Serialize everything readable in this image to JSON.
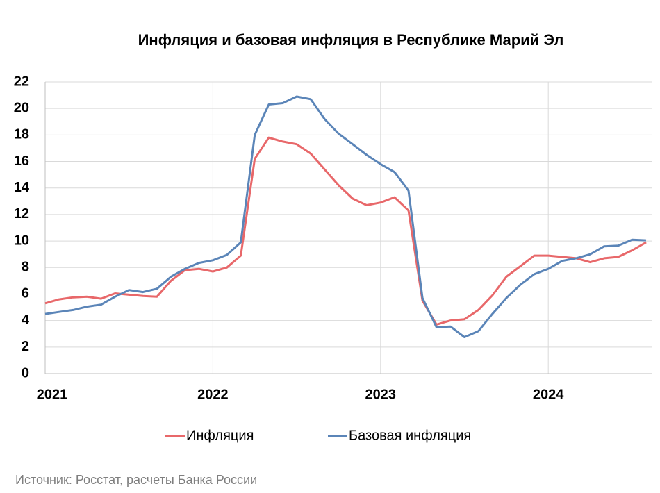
{
  "chart_data": {
    "type": "line",
    "title": "Инфляция и базовая инфляция в Республике Марий Эл",
    "source": "Источник: Росстат, расчеты Банка России",
    "categories": [
      "2021",
      null,
      null,
      null,
      null,
      null,
      null,
      null,
      null,
      null,
      null,
      null,
      "2022",
      null,
      null,
      null,
      null,
      null,
      null,
      null,
      null,
      null,
      null,
      null,
      "2023",
      null,
      null,
      null,
      null,
      null,
      null,
      null,
      null,
      null,
      null,
      null,
      "2024",
      null,
      null,
      null,
      null,
      null,
      null,
      null
    ],
    "series": [
      {
        "name": "Инфляция",
        "color": "#e8686a",
        "values": [
          5.3,
          5.6,
          5.75,
          5.8,
          5.65,
          6.05,
          5.95,
          5.85,
          5.8,
          7.0,
          7.8,
          7.9,
          7.7,
          8.0,
          8.9,
          16.2,
          17.8,
          17.5,
          17.3,
          16.6,
          15.4,
          14.2,
          13.2,
          12.7,
          12.9,
          13.3,
          12.3,
          5.5,
          3.7,
          4.0,
          4.1,
          4.8,
          5.9,
          7.3,
          8.1,
          8.9,
          8.9,
          8.8,
          8.7,
          8.4,
          8.7,
          8.8,
          9.3,
          9.9
        ]
      },
      {
        "name": "Базовая инфляция",
        "color": "#5b85b8",
        "values": [
          4.5,
          4.65,
          4.8,
          5.05,
          5.2,
          5.8,
          6.3,
          6.15,
          6.4,
          7.3,
          7.9,
          8.35,
          8.55,
          8.95,
          9.9,
          18.0,
          20.3,
          20.4,
          20.9,
          20.7,
          19.2,
          18.1,
          17.3,
          16.5,
          15.8,
          15.2,
          13.8,
          5.7,
          3.5,
          3.55,
          2.75,
          3.2,
          4.5,
          5.7,
          6.7,
          7.5,
          7.9,
          8.5,
          8.7,
          9.0,
          9.6,
          9.65,
          10.1,
          10.05
        ]
      }
    ],
    "ylim": [
      0,
      22
    ],
    "yticks": [
      0,
      2,
      4,
      6,
      8,
      10,
      12,
      14,
      16,
      18,
      20,
      22
    ],
    "grid": true
  }
}
